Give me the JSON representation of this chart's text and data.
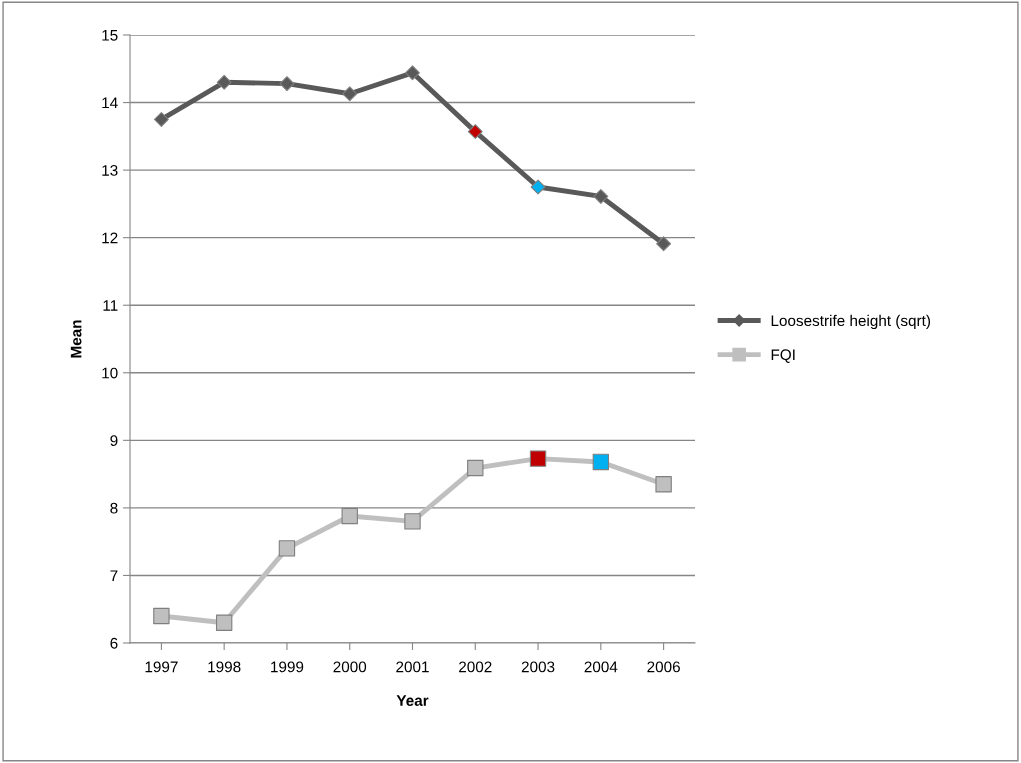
{
  "chart_data": {
    "type": "line",
    "xlabel": "Year",
    "ylabel": "Mean",
    "categories": [
      "1997",
      "1998",
      "1999",
      "2000",
      "2001",
      "2002",
      "2003",
      "2004",
      "2006"
    ],
    "series": [
      {
        "name": "Loosestrife height (sqrt)",
        "color": "#595959",
        "marker": "diamond",
        "colors": [
          "#595959",
          "#595959",
          "#595959",
          "#595959",
          "#595959",
          "#c00000",
          "#00b0f0",
          "#595959",
          "#595959"
        ],
        "values": [
          13.75,
          14.3,
          14.28,
          14.13,
          14.44,
          13.57,
          12.75,
          12.61,
          11.91
        ]
      },
      {
        "name": "FQI",
        "color": "#bfbfbf",
        "marker": "square",
        "colors": [
          "#bfbfbf",
          "#bfbfbf",
          "#bfbfbf",
          "#bfbfbf",
          "#bfbfbf",
          "#bfbfbf",
          "#c00000",
          "#00b0f0",
          "#bfbfbf"
        ],
        "values": [
          6.4,
          6.3,
          7.4,
          7.88,
          7.8,
          8.59,
          8.73,
          8.68,
          8.35
        ]
      }
    ],
    "ylim": [
      6,
      15
    ],
    "yticks": [
      6,
      7,
      8,
      9,
      10,
      11,
      12,
      13,
      14,
      15
    ],
    "grid": "y",
    "legend": "right",
    "line_style": "solid"
  }
}
